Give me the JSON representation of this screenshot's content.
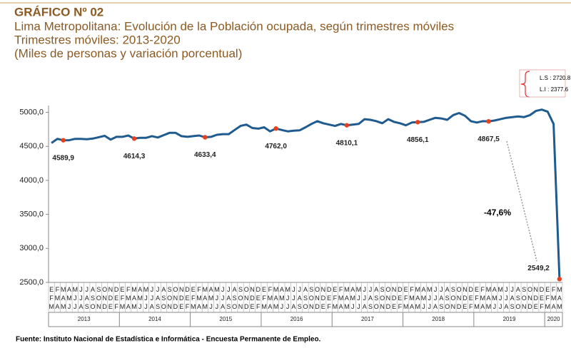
{
  "chart_data": {
    "type": "line",
    "title": "GRÁFICO Nº 02",
    "subtitle": [
      "Lima Metropolitana: Evolución de la Población ocupada, según trimestres móviles",
      "Trimestres móviles: 2013-2020",
      "(Miles de personas y variación porcentual)"
    ],
    "annotations": [
      "-47,6%",
      "L.S : 2720.8",
      "L.I : 2377.6"
    ],
    "source": "Fuente: Instituto Nacional de Estadística e Informática - Encuesta Permanente de Empleo.",
    "categories": [
      "EFM",
      "FMA",
      "MAM",
      "AMJ",
      "MJJ",
      "JJA",
      "JAS",
      "ASO",
      "SON",
      "OND",
      "NDE",
      "DEF",
      "EFM",
      "FMA",
      "MAM",
      "AMJ",
      "MJJ",
      "JJA",
      "JAS",
      "ASO",
      "SON",
      "OND",
      "NDE",
      "DEF",
      "EFM",
      "FMA",
      "MAM",
      "AMJ",
      "MJJ",
      "JJA",
      "JAS",
      "ASO",
      "SON",
      "OND",
      "NDE",
      "DEF",
      "EFM",
      "FMA",
      "MAM",
      "AMJ",
      "MJJ",
      "JJA",
      "JAS",
      "ASO",
      "SON",
      "OND",
      "NDE",
      "DEF",
      "EFM",
      "FMA",
      "MAM",
      "AMJ",
      "MJJ",
      "JJA",
      "JAS",
      "ASO",
      "SON",
      "OND",
      "NDE",
      "DEF",
      "EFM",
      "FMA",
      "MAM",
      "AMJ",
      "MJJ",
      "JJA",
      "JAS",
      "ASO",
      "SON",
      "OND",
      "NDE",
      "DEF",
      "EFM",
      "FMA",
      "MAM",
      "AMJ",
      "MJJ",
      "JJA",
      "JAS",
      "ASO",
      "SON",
      "OND",
      "NDE",
      "DEF",
      "EFM",
      "FMA",
      "MAM"
    ],
    "year_groups": [
      {
        "label": "2013",
        "count": 12
      },
      {
        "label": "2014",
        "count": 12
      },
      {
        "label": "2015",
        "count": 12
      },
      {
        "label": "2016",
        "count": 12
      },
      {
        "label": "2017",
        "count": 12
      },
      {
        "label": "2018",
        "count": 12
      },
      {
        "label": "2019",
        "count": 12
      },
      {
        "label": "2020",
        "count": 3
      }
    ],
    "series": [
      {
        "name": "Población ocupada",
        "color": "#1f5b8e",
        "values": [
          4550,
          4610,
          4589.9,
          4590,
          4610,
          4610,
          4605,
          4615,
          4635,
          4655,
          4600,
          4640,
          4640,
          4660,
          4614.3,
          4625,
          4625,
          4650,
          4630,
          4665,
          4700,
          4700,
          4650,
          4640,
          4650,
          4660,
          4633.4,
          4640,
          4670,
          4680,
          4680,
          4740,
          4800,
          4820,
          4770,
          4760,
          4780,
          4720,
          4762.0,
          4740,
          4720,
          4730,
          4735,
          4780,
          4830,
          4870,
          4840,
          4820,
          4800,
          4830,
          4810.1,
          4820,
          4830,
          4900,
          4890,
          4870,
          4840,
          4900,
          4860,
          4840,
          4810,
          4850,
          4856.1,
          4860,
          4890,
          4920,
          4910,
          4890,
          4960,
          4990,
          4950,
          4870,
          4850,
          4870,
          4867.5,
          4880,
          4900,
          4920,
          4930,
          4940,
          4930,
          4960,
          5020,
          5040,
          5010,
          4830,
          2549.2
        ],
        "value_labels": [
          null,
          null,
          "4589,9",
          null,
          null,
          null,
          null,
          null,
          null,
          null,
          null,
          null,
          null,
          null,
          "4614,3",
          null,
          null,
          null,
          null,
          null,
          null,
          null,
          null,
          null,
          null,
          null,
          "4633,4",
          null,
          null,
          null,
          null,
          null,
          null,
          null,
          null,
          null,
          null,
          null,
          "4762,0",
          null,
          null,
          null,
          null,
          null,
          null,
          null,
          null,
          null,
          null,
          null,
          "4810,1",
          null,
          null,
          null,
          null,
          null,
          null,
          null,
          null,
          null,
          null,
          null,
          "4856,1",
          null,
          null,
          null,
          null,
          null,
          null,
          null,
          null,
          null,
          null,
          null,
          "4867,5",
          null,
          null,
          null,
          null,
          null,
          null,
          null,
          null,
          null,
          null,
          null,
          "2549,2"
        ],
        "marker_color": "#e8401c"
      }
    ],
    "ylim": [
      2500,
      5100
    ],
    "yticks": [
      {
        "value": 2500,
        "label": "2500,0"
      },
      {
        "value": 3000,
        "label": "3000,0"
      },
      {
        "value": 3500,
        "label": "3500,0"
      },
      {
        "value": 4000,
        "label": "4000,0"
      },
      {
        "value": 4500,
        "label": "4500,0"
      },
      {
        "value": 5000,
        "label": "5000,0"
      }
    ],
    "grid": false
  }
}
